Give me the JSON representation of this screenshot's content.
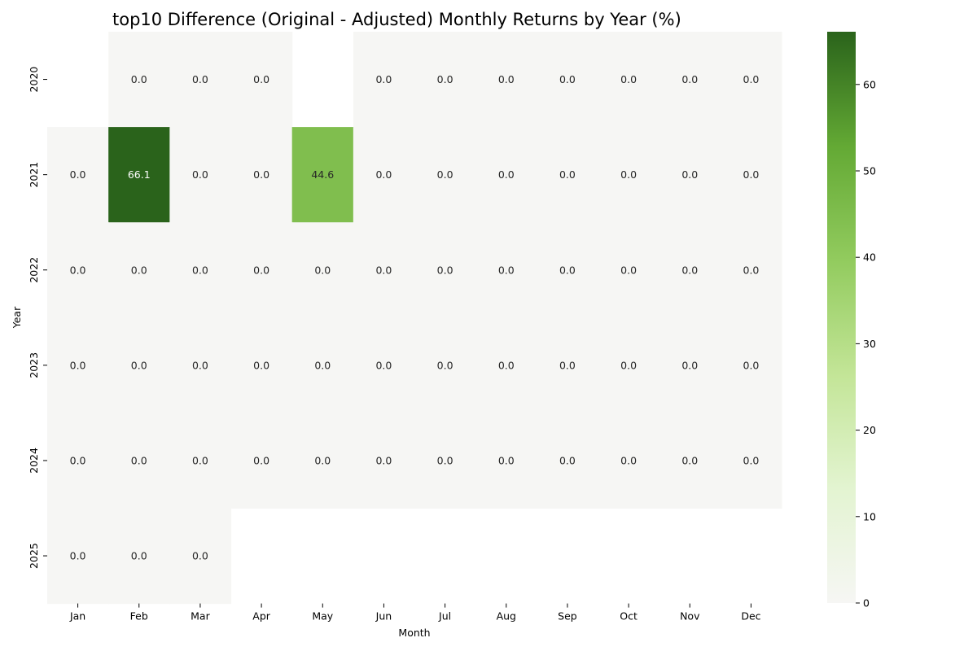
{
  "chart_data": {
    "type": "heatmap",
    "title": "top10 Difference (Original - Adjusted) Monthly Returns by Year (%)",
    "xlabel": "Month",
    "ylabel": "Year",
    "x_categories": [
      "Jan",
      "Feb",
      "Mar",
      "Apr",
      "May",
      "Jun",
      "Jul",
      "Aug",
      "Sep",
      "Oct",
      "Nov",
      "Dec"
    ],
    "y_categories": [
      "2020",
      "2021",
      "2022",
      "2023",
      "2024",
      "2025"
    ],
    "values": [
      [
        null,
        0.0,
        0.0,
        0.0,
        null,
        0.0,
        0.0,
        0.0,
        0.0,
        0.0,
        0.0,
        0.0
      ],
      [
        0.0,
        66.1,
        0.0,
        0.0,
        44.6,
        0.0,
        0.0,
        0.0,
        0.0,
        0.0,
        0.0,
        0.0
      ],
      [
        0.0,
        0.0,
        0.0,
        0.0,
        0.0,
        0.0,
        0.0,
        0.0,
        0.0,
        0.0,
        0.0,
        0.0
      ],
      [
        0.0,
        0.0,
        0.0,
        0.0,
        0.0,
        0.0,
        0.0,
        0.0,
        0.0,
        0.0,
        0.0,
        0.0
      ],
      [
        0.0,
        0.0,
        0.0,
        0.0,
        0.0,
        0.0,
        0.0,
        0.0,
        0.0,
        0.0,
        0.0,
        0.0
      ],
      [
        0.0,
        0.0,
        0.0,
        null,
        null,
        null,
        null,
        null,
        null,
        null,
        null,
        null
      ]
    ],
    "value_format": "0.0",
    "colorbar": {
      "min": 0,
      "max": 66.1,
      "ticks": [
        0,
        10,
        20,
        30,
        40,
        50,
        60
      ],
      "colors": [
        "#f6f6f4",
        "#e3f4d1",
        "#c3e597",
        "#92cb5e",
        "#63a934",
        "#2a631b"
      ]
    },
    "grid": false
  }
}
